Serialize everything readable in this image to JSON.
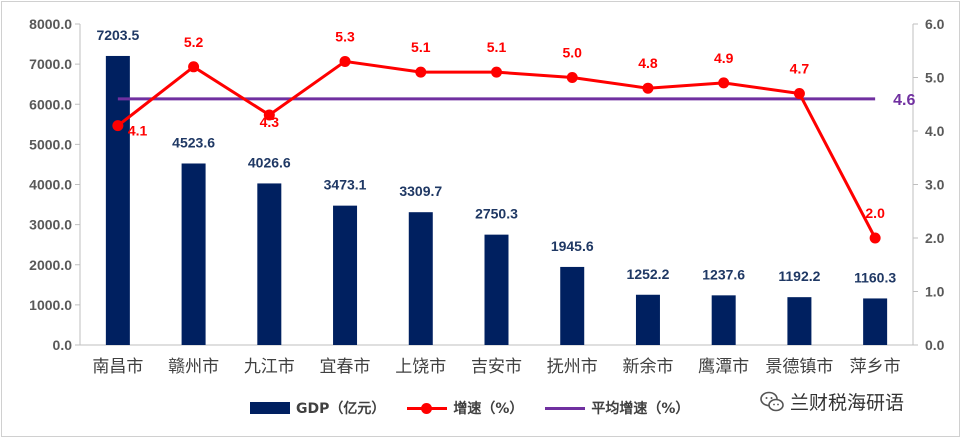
{
  "chart_data": {
    "type": "bar+line",
    "categories": [
      "南昌市",
      "赣州市",
      "九江市",
      "宜春市",
      "上饶市",
      "吉安市",
      "抚州市",
      "新余市",
      "鹰潭市",
      "景德镇市",
      "萍乡市"
    ],
    "series": [
      {
        "name": "GDP（亿元）",
        "type": "bar",
        "axis": "left",
        "values": [
          7203.5,
          4523.6,
          4026.6,
          3473.1,
          3309.7,
          2750.3,
          1945.6,
          1252.2,
          1237.6,
          1192.2,
          1160.3
        ],
        "labels": [
          "7203.5",
          "4523.6",
          "4026.6",
          "3473.1",
          "3309.7",
          "2750.3",
          "1945.6",
          "1252.2",
          "1237.6",
          "1192.2",
          "1160.3"
        ],
        "color": "#002060"
      },
      {
        "name": "增速（%）",
        "type": "line",
        "axis": "right",
        "values": [
          4.1,
          5.2,
          4.3,
          5.3,
          5.1,
          5.1,
          5.0,
          4.8,
          4.9,
          4.7,
          2.0
        ],
        "labels": [
          "4.1",
          "5.2",
          "4.3",
          "5.3",
          "5.1",
          "5.1",
          "5.0",
          "4.8",
          "4.9",
          "4.7",
          "2.0"
        ],
        "color": "#ff0000"
      },
      {
        "name": "平均增速（%）",
        "type": "line",
        "axis": "right",
        "values": [
          4.6,
          4.6,
          4.6,
          4.6,
          4.6,
          4.6,
          4.6,
          4.6,
          4.6,
          4.6,
          4.6
        ],
        "end_label": "4.6",
        "color": "#7030a0"
      }
    ],
    "y_left": {
      "range": [
        0,
        8000
      ],
      "ticks": [
        "0.0",
        "1000.0",
        "2000.0",
        "3000.0",
        "4000.0",
        "5000.0",
        "6000.0",
        "7000.0",
        "8000.0"
      ]
    },
    "y_right": {
      "range": [
        0,
        6
      ],
      "ticks": [
        "0.0",
        "1.0",
        "2.0",
        "3.0",
        "4.0",
        "5.0",
        "6.0"
      ]
    },
    "grid": false,
    "legend_position": "bottom"
  },
  "watermark": {
    "text": "兰财税海研语",
    "icon": "wechat-icon"
  }
}
